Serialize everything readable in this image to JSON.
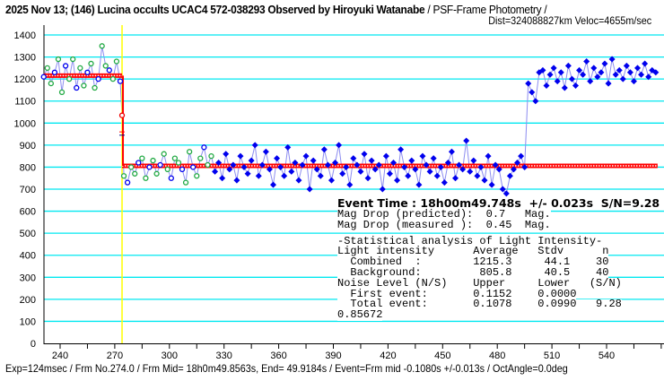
{
  "chart_data": {
    "type": "scatter",
    "title_bold": "2025 Nov 13; (146) Lucina occults UCAC4 572-038293 Observed by Hiroyuki Watanabe",
    "title_rest": " / PSF-Frame Photometry /",
    "subtitle": "Dist=324088827km Veloc=4655m/sec",
    "xlabel": "",
    "ylabel": "",
    "xlim": [
      231,
      568
    ],
    "ylim": [
      0,
      1450
    ],
    "x_ticks": [
      240,
      270,
      300,
      330,
      360,
      390,
      420,
      450,
      480,
      510,
      540
    ],
    "y_ticks": [
      0,
      100,
      200,
      300,
      400,
      500,
      600,
      700,
      800,
      900,
      1000,
      1100,
      1200,
      1300,
      1400
    ],
    "grid": true,
    "x_start": 231,
    "x_step": 2,
    "hollow_until_frame": 325,
    "values": [
      1210,
      1250,
      1180,
      1230,
      1290,
      1140,
      1260,
      1200,
      1290,
      1160,
      1250,
      1170,
      1230,
      1270,
      1160,
      1200,
      1350,
      1260,
      1240,
      1200,
      1280,
      1190,
      760,
      730,
      800,
      770,
      820,
      840,
      750,
      800,
      830,
      770,
      810,
      860,
      790,
      750,
      840,
      820,
      790,
      730,
      870,
      800,
      760,
      840,
      890,
      810,
      850,
      780,
      820,
      750,
      860,
      790,
      810,
      740,
      850,
      800,
      770,
      830,
      900,
      760,
      810,
      870,
      790,
      720,
      840,
      800,
      760,
      890,
      780,
      820,
      740,
      810,
      850,
      700,
      830,
      790,
      760,
      880,
      810,
      740,
      820,
      900,
      770,
      800,
      720,
      840,
      810,
      780,
      860,
      750,
      830,
      790,
      810,
      700,
      850,
      770,
      820,
      740,
      880,
      800,
      760,
      830,
      790,
      720,
      850,
      810,
      780,
      840,
      760,
      800,
      730,
      820,
      870,
      750,
      810,
      790,
      920,
      780,
      830,
      760,
      800,
      740,
      850,
      720,
      810,
      790,
      700,
      680,
      760,
      790,
      820,
      850,
      800,
      1180,
      1140,
      1100,
      1230,
      1240,
      1170,
      1220,
      1250,
      1190,
      1230,
      1160,
      1260,
      1200,
      1170,
      1240,
      1220,
      1280,
      1190,
      1250,
      1210,
      1230,
      1270,
      1180,
      1290,
      1220,
      1240,
      1200,
      1260,
      1230,
      1190,
      1250,
      1220,
      1270,
      1210,
      1240,
      1230
    ],
    "event_point": {
      "frame": 274,
      "value": 1035
    },
    "event_frame": 274,
    "levels": [
      {
        "from": 231,
        "to": 274,
        "value": 1215.3
      },
      {
        "from": 274,
        "to": 568,
        "value": 805.8
      }
    ],
    "colors": {
      "grid": "#00e8f0",
      "hollowA": "#22aa44",
      "hollowB": "#0000ee",
      "filled": "#0000ee",
      "line": "#8c8cf0",
      "level": "#ff0000",
      "event": "#ffff00"
    }
  },
  "footer": "Exp=124msec / Frm No.274.0 / Frm Mid= 18h0m49.8563s,  End= 49.9184s / Event=Frm mid -0.1080s +/-0.013s / OctAngle=0.0deg",
  "box": {
    "event": "Event Time : 18h00m49.748s  +/- 0.023s  S/N=9.28",
    "lines": [
      "Mag Drop (predicted):  0.7   Mag.",
      "Mag Drop (measured ):  0.45  Mag.",
      "-Statistical analysis of Light Intensity-",
      "Light intensity      Average   Stdv      n",
      "  Combined  :        1215.3     44.1    30",
      "  Background:         805.8     40.5    40",
      "Noise Level (N/S)    Upper     Lower   (S/N)",
      "  First event:       0.1152    0.0000",
      "  Total event:       0.1078    0.0990   9.28",
      "0.85672"
    ]
  }
}
